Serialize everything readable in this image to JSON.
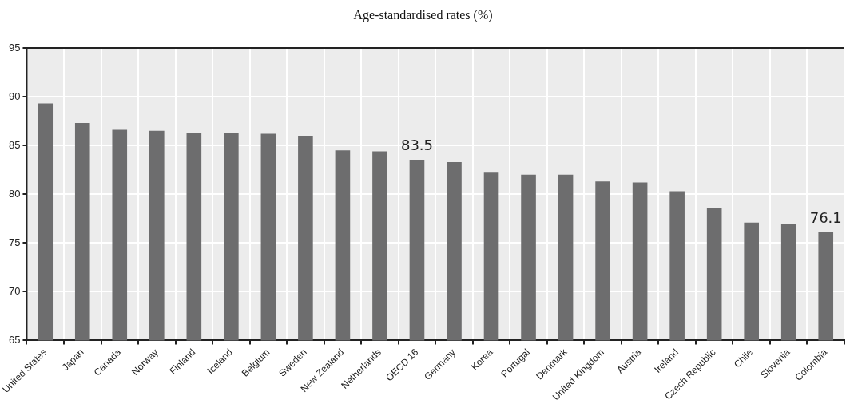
{
  "chart_data": {
    "type": "bar",
    "title": "Age-standardised rates (%)",
    "categories": [
      "United States",
      "Japan",
      "Canada",
      "Norway",
      "Finland",
      "Iceland",
      "Belgium",
      "Sweden",
      "New Zealand",
      "Netherlands",
      "OECD 16",
      "Germany",
      "Korea",
      "Portugal",
      "Denmark",
      "United Kingdom",
      "Austria",
      "Ireland",
      "Czech Republic",
      "Chile",
      "Slovenia",
      "Colombia"
    ],
    "values": [
      89.3,
      87.3,
      86.6,
      86.5,
      86.3,
      86.3,
      86.2,
      86.0,
      84.5,
      84.4,
      83.5,
      83.3,
      82.2,
      82.0,
      82.0,
      81.3,
      81.2,
      80.3,
      78.6,
      77.1,
      76.9,
      76.1
    ],
    "value_labels": [
      null,
      null,
      null,
      null,
      null,
      null,
      null,
      null,
      null,
      null,
      "83.5",
      null,
      null,
      null,
      null,
      null,
      null,
      null,
      null,
      null,
      null,
      "76.1"
    ],
    "color": "#6d6d6e",
    "ylim": [
      65,
      95
    ],
    "yticks": [
      65,
      70,
      75,
      80,
      85,
      90,
      95
    ],
    "grid": true,
    "legend": false
  }
}
